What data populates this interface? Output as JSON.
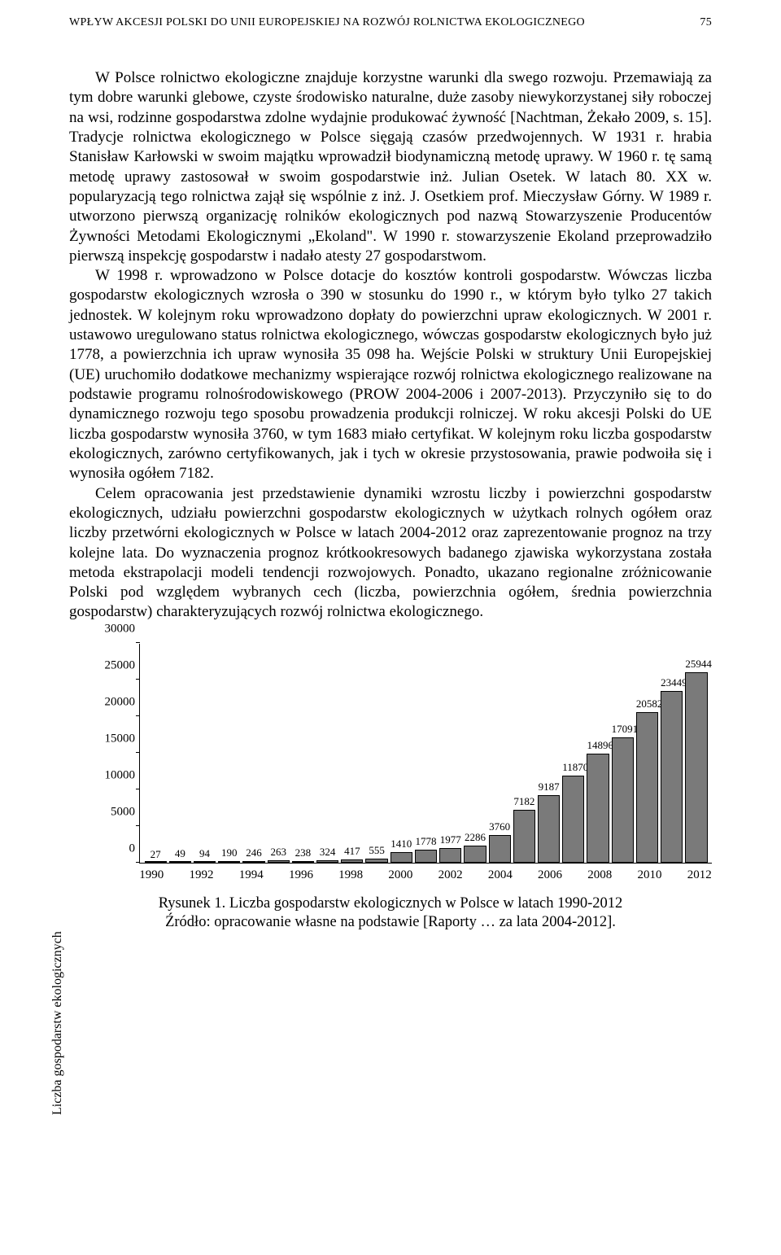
{
  "header": {
    "running_title": "WPŁYW AKCESJI POLSKI DO UNII EUROPEJSKIEJ NA ROZWÓJ ROLNICTWA EKOLOGICZNEGO",
    "page_number": "75"
  },
  "paragraphs": {
    "p1": "W Polsce rolnictwo ekologiczne znajduje korzystne warunki dla swego rozwoju. Przemawiają za tym dobre warunki glebowe, czyste środowisko naturalne, duże zasoby niewykorzystanej siły roboczej na wsi, rodzinne gospodarstwa zdolne wydajnie produkować żywność [Nachtman, Żekało 2009, s. 15]. Tradycje rolnictwa ekologicznego w Polsce sięgają czasów przedwojennych. W 1931 r. hrabia Stanisław Karłowski w swoim majątku wprowadził biodynamiczną metodę uprawy. W 1960 r. tę samą metodę uprawy zastosował w swoim gospodarstwie inż. Julian Osetek. W latach 80. XX w. popularyzacją tego rolnictwa zajął się wspólnie z inż. J. Osetkiem prof. Mieczysław Górny. W 1989 r. utworzono pierwszą organizację rolników ekologicznych pod nazwą Stowarzyszenie Producentów Żywności Metodami Ekologicznymi „Ekoland\". W 1990 r. stowarzyszenie Ekoland przeprowadziło pierwszą inspekcję gospodarstw i nadało atesty 27 gospodarstwom.",
    "p2": "W 1998 r. wprowadzono w Polsce dotacje do kosztów kontroli gospodarstw. Wówczas liczba gospodarstw ekologicznych wzrosła o 390 w stosunku do 1990 r., w którym było tylko 27 takich jednostek. W kolejnym roku wprowadzono dopłaty do powierzchni upraw ekologicznych. W 2001 r. ustawowo uregulowano status rolnictwa ekologicznego, wówczas gospodarstw ekologicznych było już 1778, a powierzchnia ich upraw wynosiła 35 098 ha. Wejście Polski w struktury Unii Europejskiej (UE) uruchomiło dodatkowe mechanizmy wspierające rozwój rolnictwa ekologicznego realizowane na podstawie programu rolnośrodowiskowego (PROW 2004-2006 i 2007-2013). Przyczyniło się to do dynamicznego rozwoju tego sposobu prowadzenia produkcji rolniczej. W roku akcesji Polski do UE liczba gospodarstw wynosiła 3760, w tym 1683 miało certyfikat. W kolejnym roku liczba gospodarstw ekologicznych, zarówno certyfikowanych, jak i tych w okresie przystosowania, prawie podwoiła się i wynosiła ogółem 7182.",
    "p3": "Celem opracowania jest przedstawienie dynamiki wzrostu liczby i powierzchni gospodarstw ekologicznych, udziału powierzchni gospodarstw ekologicznych w użytkach rolnych ogółem oraz liczby przetwórni ekologicznych w Polsce w latach 2004-2012 oraz zaprezentowanie prognoz na trzy kolejne lata. Do wyznaczenia prognoz krótkookresowych badanego zjawiska wykorzystana została metoda ekstrapolacji modeli tendencji rozwojowych. Ponadto, ukazano regionalne zróżnicowanie Polski pod względem wybranych cech (liczba, powierzchnia ogółem, średnia powierzchnia gospodarstw) charakteryzujących rozwój rolnictwa ekologicznego."
  },
  "chart": {
    "type": "bar",
    "ylabel": "Liczba gospodarstw ekologicznych",
    "ylim": [
      0,
      30000
    ],
    "ytick_step": 5000,
    "yticks": [
      "0",
      "5000",
      "10000",
      "15000",
      "20000",
      "25000",
      "30000"
    ],
    "bar_color": "#7a7a7a",
    "bar_border": "#000000",
    "background_color": "#ffffff",
    "years": [
      1990,
      1991,
      1992,
      1993,
      1994,
      1995,
      1996,
      1997,
      1998,
      1999,
      2000,
      2001,
      2002,
      2003,
      2004,
      2005,
      2006,
      2007,
      2008,
      2009,
      2010,
      2011,
      2012
    ],
    "values": [
      27,
      49,
      94,
      190,
      246,
      263,
      238,
      324,
      417,
      555,
      1410,
      1778,
      1977,
      2286,
      3760,
      7182,
      9187,
      11870,
      14896,
      17091,
      20582,
      23449,
      25944
    ],
    "xticks": [
      "1990",
      "1992",
      "1994",
      "1996",
      "1998",
      "2000",
      "2002",
      "2004",
      "2006",
      "2008",
      "2010",
      "2012"
    ],
    "caption_line1": "Rysunek 1. Liczba gospodarstw ekologicznych w Polsce w latach 1990-2012",
    "caption_line2": "Źródło: opracowanie własne na podstawie [Raporty … za lata 2004-2012]."
  }
}
